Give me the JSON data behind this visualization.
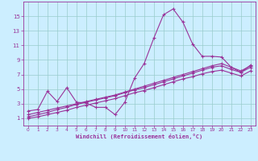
{
  "xlabel": "Windchill (Refroidissement éolien,°C)",
  "x_values": [
    0,
    1,
    2,
    3,
    4,
    5,
    6,
    7,
    8,
    9,
    10,
    11,
    12,
    13,
    14,
    15,
    16,
    17,
    18,
    19,
    20,
    21,
    22,
    23
  ],
  "main_line": [
    2.0,
    2.2,
    4.7,
    3.3,
    5.2,
    3.2,
    3.1,
    2.5,
    2.5,
    1.5,
    3.2,
    6.5,
    8.5,
    12.0,
    15.2,
    16.0,
    14.2,
    11.2,
    9.5,
    9.5,
    9.4,
    8.0,
    7.3,
    8.3
  ],
  "line2": [
    1.5,
    1.8,
    2.1,
    2.4,
    2.7,
    3.0,
    3.3,
    3.6,
    3.9,
    4.2,
    4.6,
    5.0,
    5.4,
    5.8,
    6.2,
    6.6,
    7.0,
    7.4,
    7.8,
    8.2,
    8.5,
    8.0,
    7.5,
    8.2
  ],
  "line3": [
    1.2,
    1.5,
    1.8,
    2.2,
    2.5,
    2.9,
    3.2,
    3.5,
    3.8,
    4.1,
    4.5,
    4.9,
    5.2,
    5.6,
    6.0,
    6.4,
    6.8,
    7.2,
    7.6,
    8.0,
    8.2,
    7.7,
    7.3,
    8.0
  ],
  "line4": [
    1.0,
    1.2,
    1.5,
    1.8,
    2.1,
    2.5,
    2.8,
    3.1,
    3.4,
    3.7,
    4.1,
    4.5,
    4.8,
    5.2,
    5.6,
    6.0,
    6.4,
    6.7,
    7.1,
    7.4,
    7.6,
    7.2,
    6.8,
    7.5
  ],
  "color": "#993399",
  "bg_color": "#cceeff",
  "grid_color": "#99cccc",
  "ylim": [
    0,
    17
  ],
  "xlim_min": -0.5,
  "xlim_max": 23.5,
  "yticks": [
    1,
    3,
    5,
    7,
    9,
    11,
    13,
    15
  ],
  "xticks": [
    0,
    1,
    2,
    3,
    4,
    5,
    6,
    7,
    8,
    9,
    10,
    11,
    12,
    13,
    14,
    15,
    16,
    17,
    18,
    19,
    20,
    21,
    22,
    23
  ],
  "marker": "+",
  "linewidth": 0.8,
  "markersize": 3
}
